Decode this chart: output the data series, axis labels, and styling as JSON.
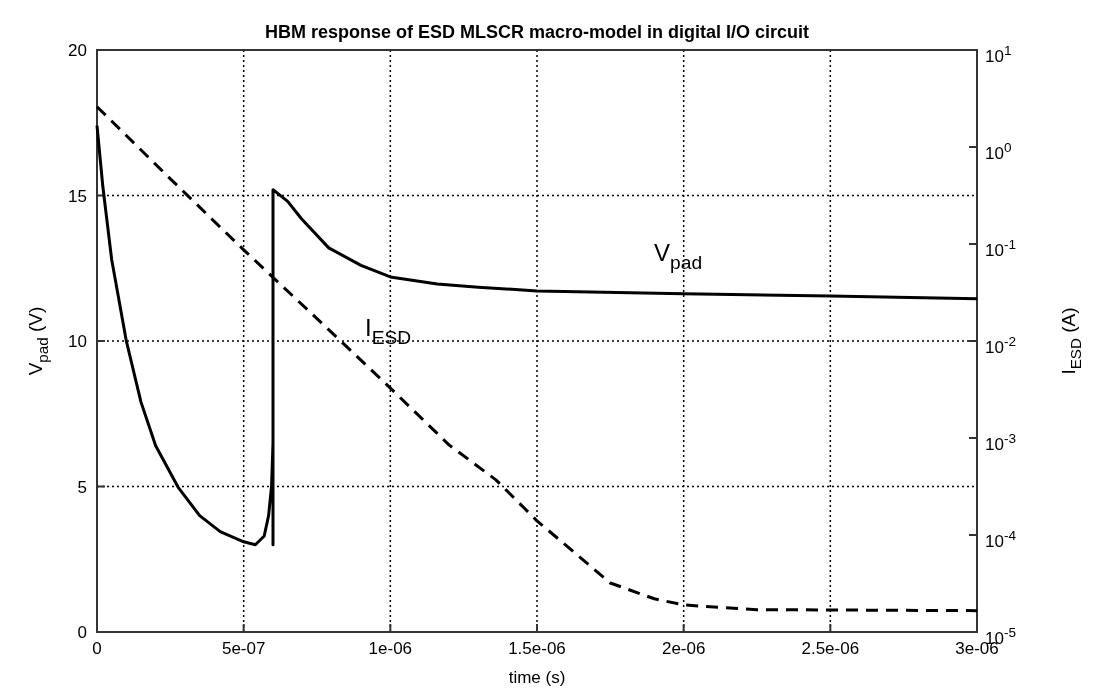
{
  "chart_data": {
    "type": "line",
    "title": "HBM response of ESD MLSCR macro-model in digital I/O circuit",
    "xlabel": "time (s)",
    "ylabel": "V$_{pad}$ (V)",
    "y2label": "I$_{ESD}$ (A)",
    "xlim": [
      0,
      3e-06
    ],
    "xticks": [
      0,
      {
        "value": 5e-07,
        "label": "5e-07"
      },
      {
        "value": 1e-06,
        "label": "1e-06"
      },
      {
        "value": 1.5e-06,
        "label": "1.5e-06"
      },
      {
        "value": 2e-06,
        "label": "2e-06"
      },
      {
        "value": 2.5e-06,
        "label": "2.5e-06"
      },
      {
        "value": 3e-06,
        "label": "3e-06"
      }
    ],
    "ylim": [
      0,
      20
    ],
    "yticks": [
      0,
      5,
      10,
      15,
      20
    ],
    "y2lim": [
      1e-05,
      10
    ],
    "y2ticks": [
      {
        "value": 1e-05,
        "label": "10$^{-5}$"
      },
      {
        "value": 0.0001,
        "label": "10$^{-4}$"
      },
      {
        "value": 0.001,
        "label": "10$^{-3}$"
      },
      {
        "value": 0.01,
        "label": "10$^{-2}$"
      },
      {
        "value": 0.1,
        "label": "10$^{-1}$"
      },
      {
        "value": 1,
        "label": "10$^{0}$"
      },
      {
        "value": 10,
        "label": "10$^{1}$"
      }
    ],
    "log": "y2",
    "grid": true,
    "series": [
      {
        "name": "V$_{pad}$",
        "color": "#000000",
        "line_style": "solid",
        "x": [
          0,
          2e-08,
          5e-08,
          1e-07,
          1.5e-07,
          2e-07,
          2.78e-07,
          3.5e-07,
          4.2e-07,
          5e-07,
          5.4e-07,
          5.7e-07,
          5.85e-07,
          5.95e-07,
          6e-07,
          6e-07,
          6e-07,
          6.5e-07,
          6.97e-07,
          7.9e-07,
          9e-07,
          1e-06,
          1.16e-06,
          1.3e-06,
          1.5e-06,
          2e-06,
          2.5e-06,
          3e-06
        ],
        "values": [
          17.4,
          15.3,
          12.8,
          10.0,
          7.9,
          6.4,
          4.95,
          4.0,
          3.45,
          3.1,
          3.0,
          3.3,
          4.0,
          5.0,
          6.5,
          3.0,
          15.2,
          14.8,
          14.2,
          13.2,
          12.6,
          12.2,
          11.96,
          11.85,
          11.72,
          11.62,
          11.55,
          11.45
        ]
      },
      {
        "name": "I$_{ESD}$",
        "color": "#000000",
        "line_style": "dashed",
        "axis": "y2",
        "x": [
          0,
          2.5e-07,
          5e-07,
          7.5e-07,
          9.7e-07,
          1.2e-06,
          1.36e-06,
          1.5e-06,
          1.75e-06,
          1.9e-06,
          2e-06,
          2.25e-06,
          3e-06
        ],
        "values": [
          2.6,
          0.47,
          0.087,
          0.017,
          0.004,
          0.00085,
          0.00037,
          0.00014,
          3.2e-05,
          2.2e-05,
          1.9e-05,
          1.7e-05,
          1.66e-05
        ]
      }
    ]
  }
}
